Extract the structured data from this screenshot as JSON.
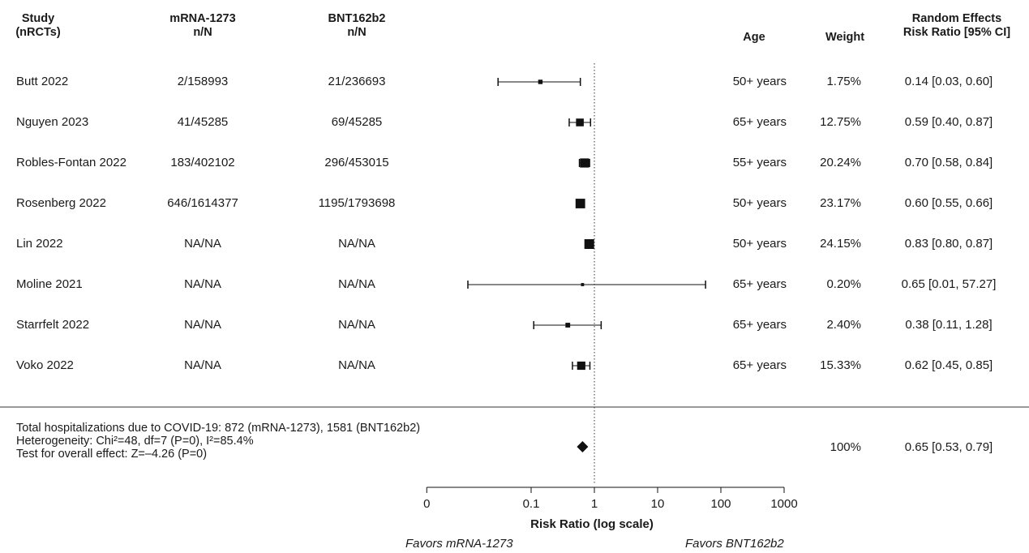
{
  "headers": {
    "study": [
      "Study",
      "(nRCTs)"
    ],
    "mrna": [
      "mRNA-1273",
      "n/N"
    ],
    "bnt": [
      "BNT162b2",
      "n/N"
    ],
    "age": "Age",
    "weight": "Weight",
    "effect": [
      "Random Effects",
      "Risk Ratio [95% CI]"
    ]
  },
  "summary": {
    "line1": "Total hospitalizations due to COVID-19: 872 (mRNA-1273), 1581 (BNT162b2)",
    "line2": "Heterogeneity: Chi²=48, df=7 (P=0), I²=85.4%",
    "line3": "Test for overall effect: Z=–4.26 (P=0)",
    "weight": "100%",
    "ci_text": "0.65 [0.53, 0.79]"
  },
  "chart_data": {
    "type": "forest",
    "x_scale": "log",
    "xlabel": "Risk Ratio (log scale)",
    "x_ticks": [
      0,
      0.1,
      1,
      10,
      100,
      1000
    ],
    "x_tick_labels": [
      "0",
      "0.1",
      "1",
      "10",
      "100",
      "1000"
    ],
    "reference_line": 1,
    "favors_left": "Favors mRNA-1273",
    "favors_right": "Favors BNT162b2",
    "studies": [
      {
        "name": "Butt 2022",
        "mrna": "2/158993",
        "bnt": "21/236693",
        "age": "50+ years",
        "weight": "1.75%",
        "weight_pct": 1.75,
        "rr": 0.14,
        "lo": 0.03,
        "hi": 0.6,
        "ci_text": "0.14 [0.03, 0.60]"
      },
      {
        "name": "Nguyen 2023",
        "mrna": "41/45285",
        "bnt": "69/45285",
        "age": "65+ years",
        "weight": "12.75%",
        "weight_pct": 12.75,
        "rr": 0.59,
        "lo": 0.4,
        "hi": 0.87,
        "ci_text": "0.59 [0.40, 0.87]"
      },
      {
        "name": "Robles-Fontan 2022",
        "mrna": "183/402102",
        "bnt": "296/453015",
        "age": "55+ years",
        "weight": "20.24%",
        "weight_pct": 20.24,
        "rr": 0.7,
        "lo": 0.58,
        "hi": 0.84,
        "ci_text": "0.70 [0.58, 0.84]"
      },
      {
        "name": "Rosenberg 2022",
        "mrna": "646/1614377",
        "bnt": "1195/1793698",
        "age": "50+ years",
        "weight": "23.17%",
        "weight_pct": 23.17,
        "rr": 0.6,
        "lo": 0.55,
        "hi": 0.66,
        "ci_text": "0.60 [0.55, 0.66]"
      },
      {
        "name": "Lin 2022",
        "mrna": "NA/NA",
        "bnt": "NA/NA",
        "age": "50+ years",
        "weight": "24.15%",
        "weight_pct": 24.15,
        "rr": 0.83,
        "lo": 0.8,
        "hi": 0.87,
        "ci_text": "0.83 [0.80, 0.87]"
      },
      {
        "name": "Moline 2021",
        "mrna": "NA/NA",
        "bnt": "NA/NA",
        "age": "65+ years",
        "weight": "0.20%",
        "weight_pct": 0.2,
        "rr": 0.65,
        "lo": 0.01,
        "hi": 57.27,
        "ci_text": "0.65 [0.01, 57.27]"
      },
      {
        "name": "Starrfelt 2022",
        "mrna": "NA/NA",
        "bnt": "NA/NA",
        "age": "65+ years",
        "weight": "2.40%",
        "weight_pct": 2.4,
        "rr": 0.38,
        "lo": 0.11,
        "hi": 1.28,
        "ci_text": "0.38 [0.11, 1.28]"
      },
      {
        "name": "Voko 2022",
        "mrna": "NA/NA",
        "bnt": "NA/NA",
        "age": "65+ years",
        "weight": "15.33%",
        "weight_pct": 15.33,
        "rr": 0.62,
        "lo": 0.45,
        "hi": 0.85,
        "ci_text": "0.62 [0.45, 0.85]"
      }
    ],
    "pooled": {
      "rr": 0.65,
      "lo": 0.53,
      "hi": 0.79
    }
  }
}
